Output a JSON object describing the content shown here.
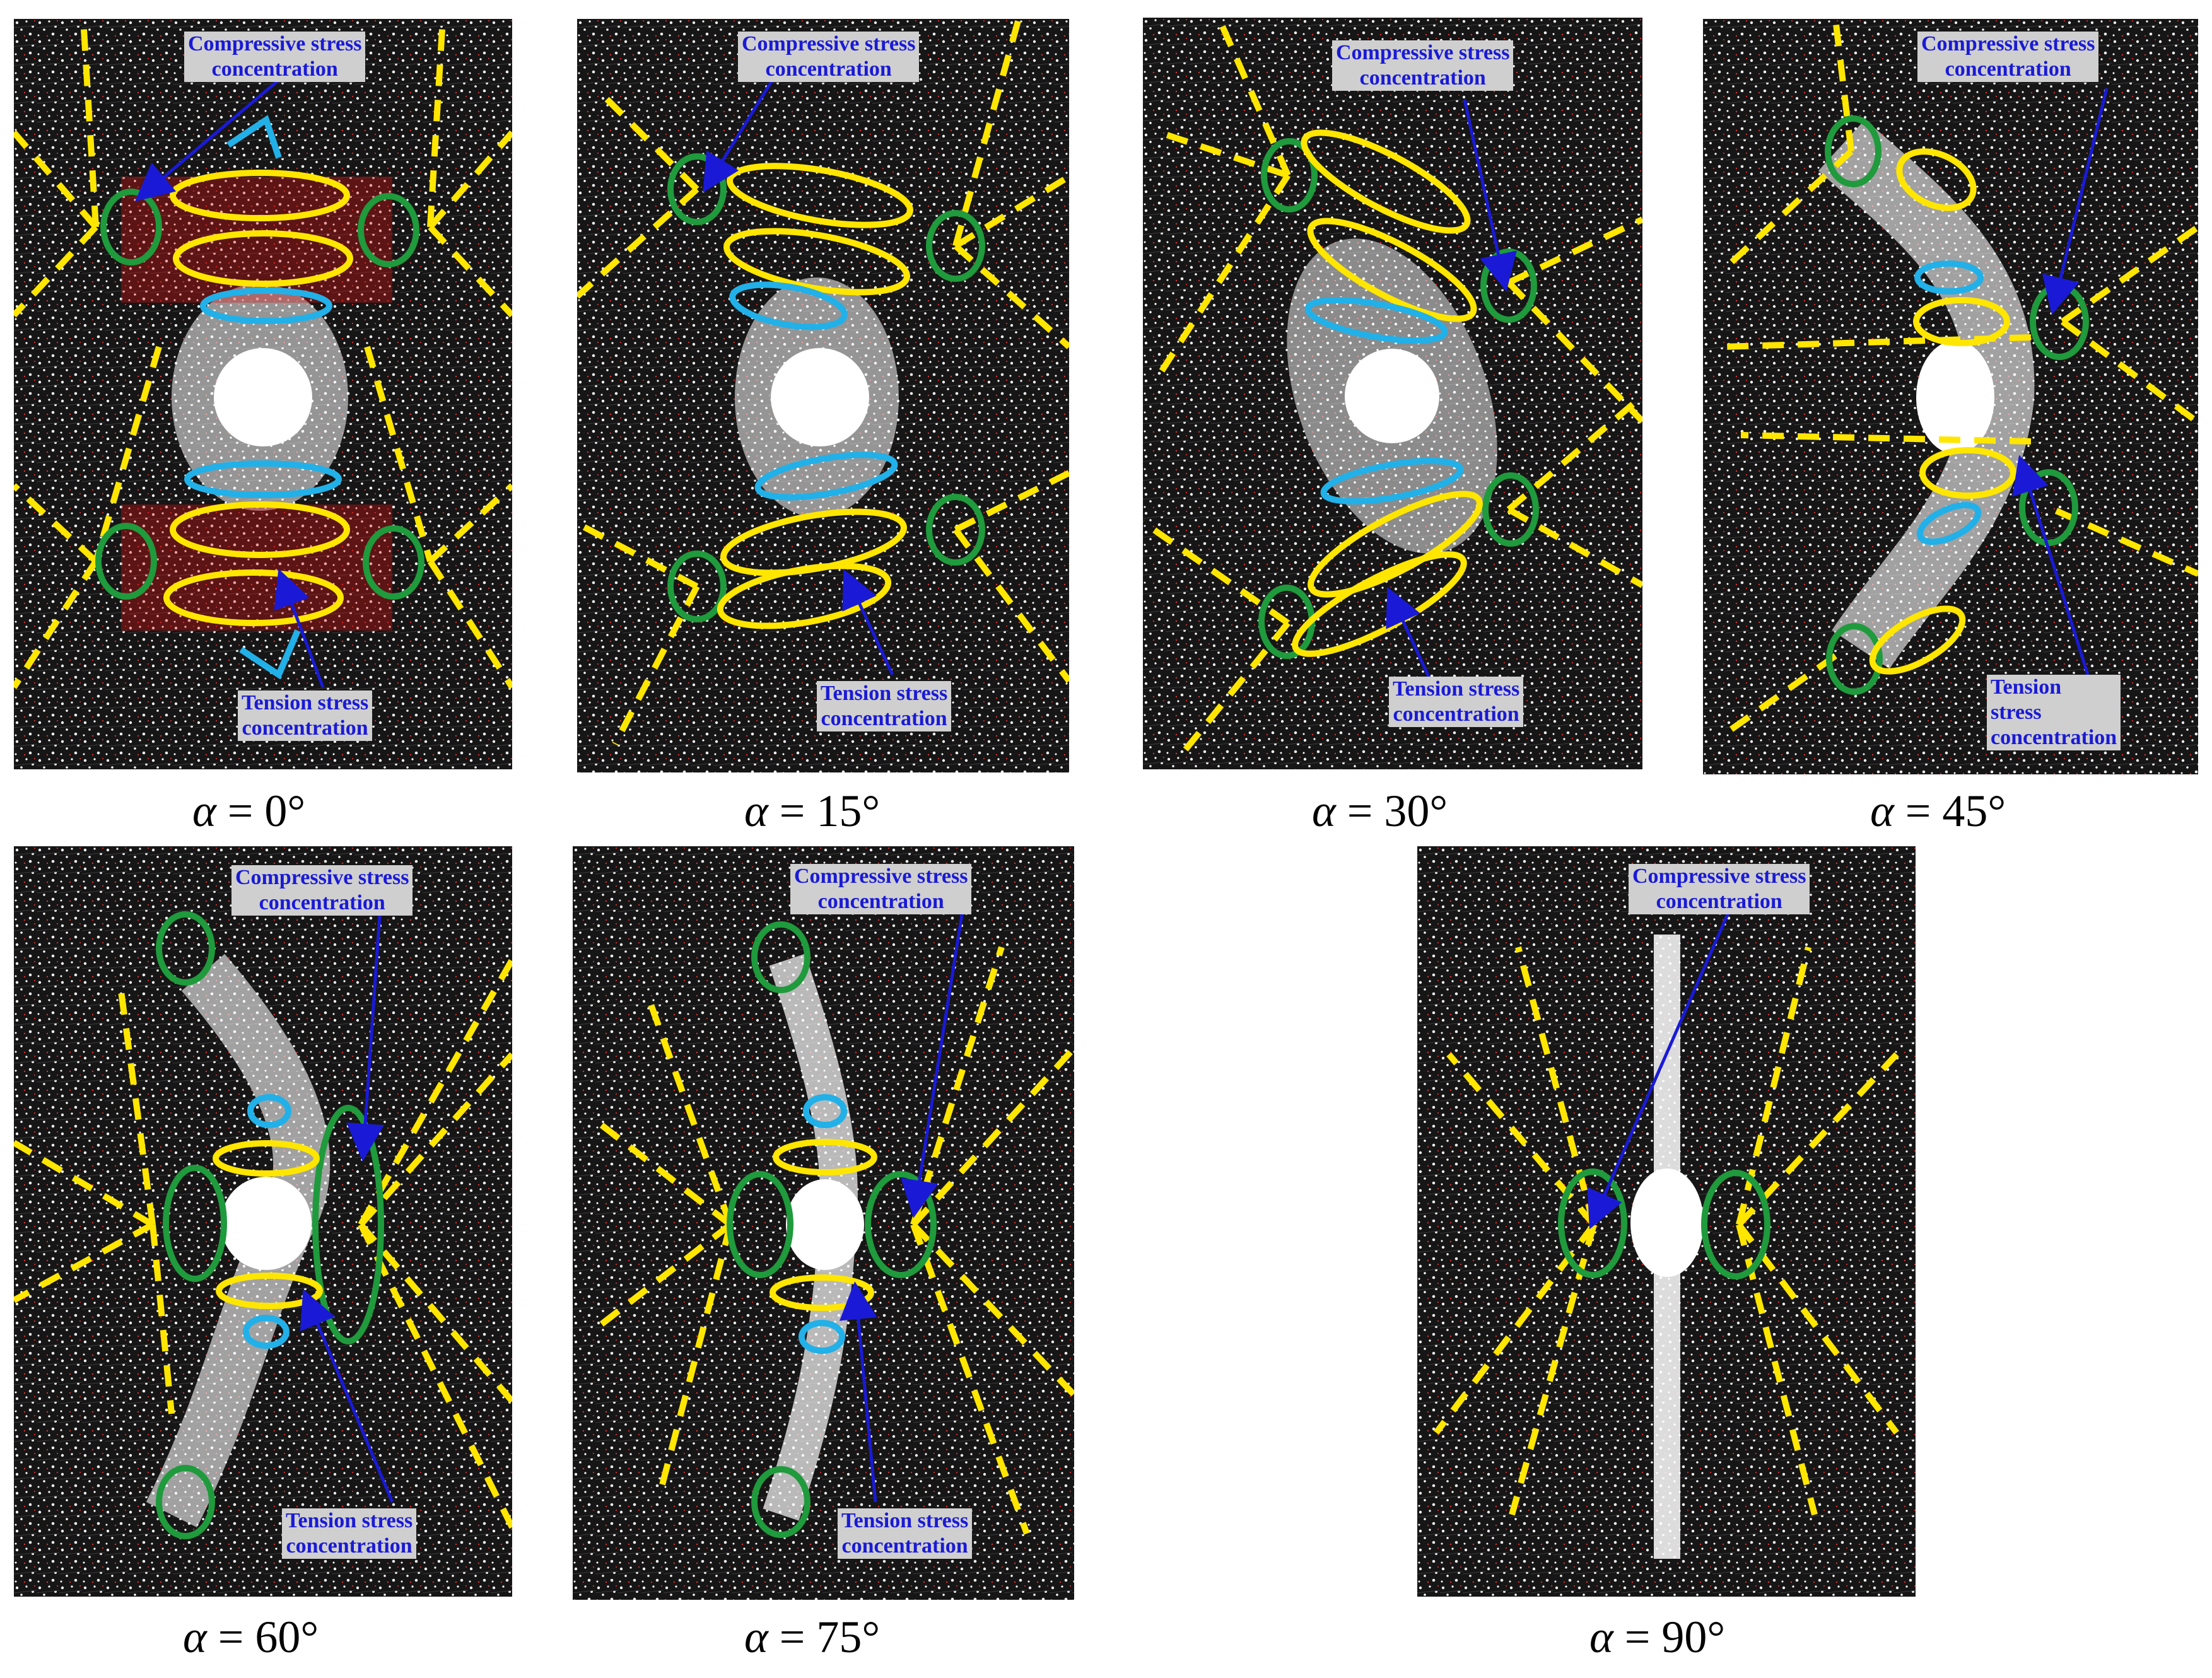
{
  "figure": {
    "labels": {
      "compressive": "Compressive stress\nconcentration",
      "tension": "Tension stress\nconcentration",
      "tension_narrow": "Tension\nstress\nconcentration"
    },
    "colors": {
      "background": "#1c1c1c",
      "opening": "#ffffff",
      "concentration_zone": "#e01010",
      "compressive_marker": "#1f9a3c",
      "tension_marker": "#ffe600",
      "secondary_marker": "#22b0e8",
      "fracture_trace": "#ffe600",
      "arrow": "#1a1ad6",
      "callout_bg": "#cfcfcf"
    },
    "panels": [
      {
        "id": "a0",
        "symbol": "α",
        "value": "= 0°"
      },
      {
        "id": "a15",
        "symbol": "α",
        "value": "= 15°"
      },
      {
        "id": "a30",
        "symbol": "α",
        "value": "= 30°"
      },
      {
        "id": "a45",
        "symbol": "α",
        "value": "= 45°"
      },
      {
        "id": "a60",
        "symbol": "α",
        "value": "= 60°"
      },
      {
        "id": "a75",
        "symbol": "α",
        "value": "= 75°"
      },
      {
        "id": "a90",
        "symbol": "α",
        "value": "= 90°"
      }
    ]
  }
}
